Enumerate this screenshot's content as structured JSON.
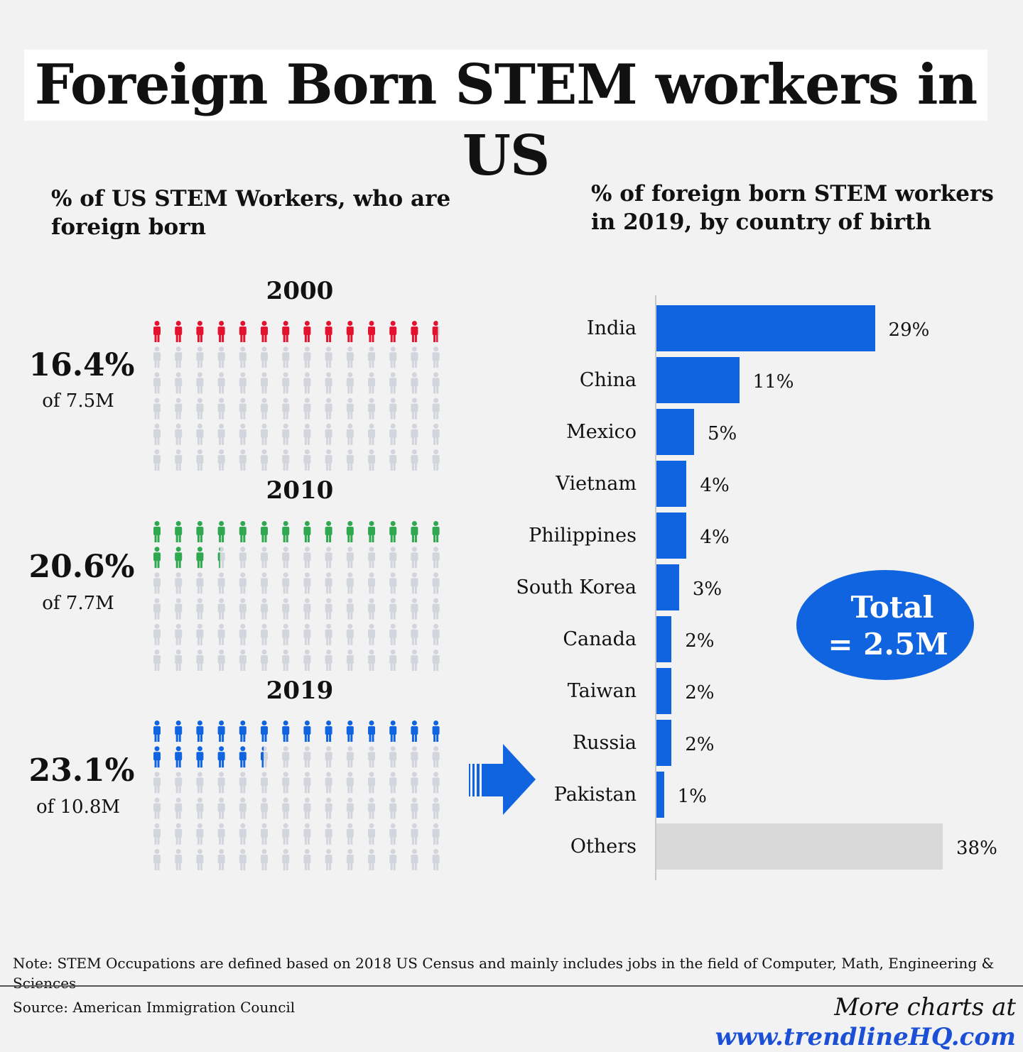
{
  "title": "Foreign Born STEM workers in US",
  "left_chart": {
    "title": "% of US STEM Workers, who are foreign born",
    "panels": [
      {
        "year": "2000",
        "percent_label": "16.4%",
        "base_label": "of 7.5M",
        "percent": 16.4,
        "color": "#e3122e"
      },
      {
        "year": "2010",
        "percent_label": "20.6%",
        "base_label": "of 7.7M",
        "percent": 20.6,
        "color": "#2fa84f"
      },
      {
        "year": "2019",
        "percent_label": "23.1%",
        "base_label": "of 10.8M",
        "percent": 23.1,
        "color": "#1064e0"
      }
    ],
    "inactive_color": "#d3d5dd",
    "icon": "person-icon"
  },
  "chart_data": {
    "type": "bar",
    "orientation": "horizontal",
    "title": "% of foreign born STEM workers in 2019, by country of birth",
    "categories": [
      "India",
      "China",
      "Mexico",
      "Vietnam",
      "Philippines",
      "South Korea",
      "Canada",
      "Taiwan",
      "Russia",
      "Pakistan",
      "Others"
    ],
    "values": [
      29,
      11,
      5,
      4,
      4,
      3,
      2,
      2,
      2,
      1,
      38
    ],
    "value_labels": [
      "29%",
      "11%",
      "5%",
      "4%",
      "4%",
      "3%",
      "2%",
      "2%",
      "2%",
      "1%",
      "38%"
    ],
    "colors": {
      "default": "#1064e0",
      "Others": "#d9d9d9"
    },
    "xlim": [
      0,
      38
    ],
    "grid": false
  },
  "total_callout": {
    "line1": "Total",
    "line2": "= 2.5M"
  },
  "arrow_icon": "right-arrow-icon",
  "footer": {
    "note": "Note: STEM Occupations are defined based on 2018 US Census and mainly includes jobs in the field of Computer, Math, Engineering & Sciences",
    "source": "Source: American Immigration Council",
    "more_prefix": "More charts at ",
    "more_url": "www.trendlineHQ.com"
  }
}
